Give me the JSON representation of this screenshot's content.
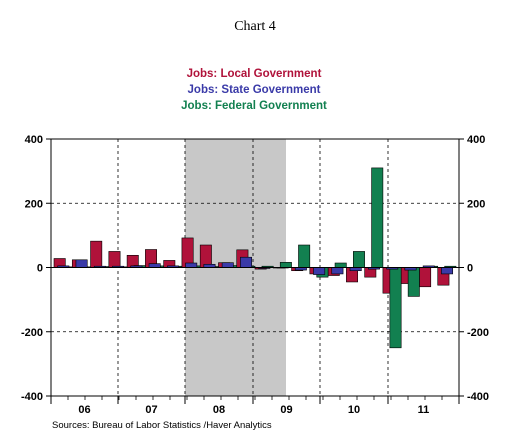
{
  "chart_data": {
    "type": "bar",
    "title": "Chart 4",
    "source": "Sources:  Bureau of Labor Statistics /Haver Analytics",
    "ylim": [
      -400,
      400
    ],
    "y_ticks": [
      "400",
      "200",
      "0",
      "-200",
      "-400"
    ],
    "x_ticks": [
      "06",
      "07",
      "08",
      "09",
      "10",
      "11"
    ],
    "grid": true,
    "legend_position": "top-center",
    "shaded_period": "recession",
    "colors": {
      "local": "#b0123a",
      "state": "#3a3aa8",
      "federal": "#128050",
      "recession": "#c8c8c8"
    },
    "series": [
      {
        "name": "Jobs: Local Government",
        "color_key": "local",
        "values": [
          28,
          24,
          82,
          50,
          38,
          56,
          22,
          92,
          70,
          15,
          55,
          -5,
          0,
          -10,
          -20,
          -25,
          -45,
          -30,
          -80,
          -50,
          -60,
          -55
        ]
      },
      {
        "name": "Jobs: State Government",
        "color_key": "state",
        "values": [
          5,
          24,
          4,
          4,
          5,
          12,
          5,
          14,
          10,
          15,
          32,
          -3,
          0,
          -8,
          -22,
          -20,
          -10,
          -5,
          -5,
          -8,
          5,
          -20
        ]
      },
      {
        "name": "Jobs: Federal Government",
        "color_key": "federal",
        "values": [
          2,
          2,
          3,
          2,
          6,
          5,
          4,
          5,
          3,
          6,
          4,
          4,
          16,
          70,
          -30,
          14,
          50,
          310,
          -250,
          -90,
          4,
          4
        ]
      }
    ]
  }
}
